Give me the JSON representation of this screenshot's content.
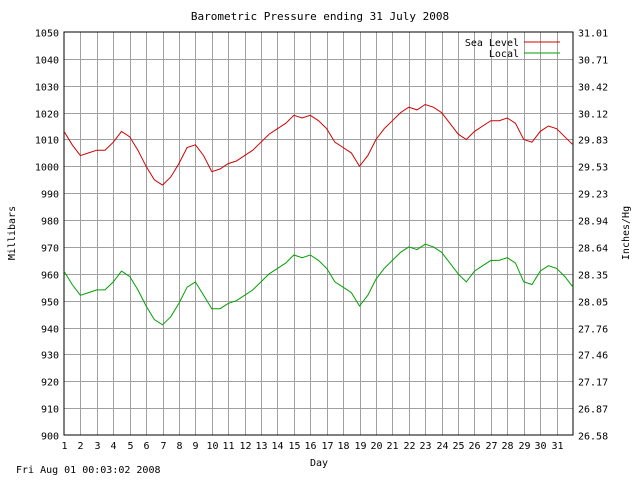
{
  "timestamp": "Fri Aug 01 00:03:02 2008",
  "chart_data": {
    "type": "line",
    "title": "Barometric Pressure ending 31 July 2008",
    "xlabel": "Day",
    "ylabel": "Millibars",
    "y2label": "Inches/Hg",
    "x_ticks": [
      "1",
      "2",
      "3",
      "4",
      "5",
      "6",
      "7",
      "8",
      "9",
      "10",
      "11",
      "12",
      "13",
      "14",
      "15",
      "16",
      "17",
      "18",
      "19",
      "20",
      "21",
      "22",
      "23",
      "24",
      "25",
      "26",
      "27",
      "28",
      "29",
      "30",
      "31"
    ],
    "xlim": [
      1,
      32
    ],
    "ylim": [
      900,
      1050
    ],
    "y_ticks": [
      "900",
      "910",
      "920",
      "930",
      "940",
      "950",
      "960",
      "970",
      "980",
      "990",
      "1000",
      "1010",
      "1020",
      "1030",
      "1040",
      "1050"
    ],
    "y2lim": [
      26.58,
      31.01
    ],
    "y2_ticks": [
      "26.58",
      "26.87",
      "27.17",
      "27.46",
      "27.76",
      "28.05",
      "28.35",
      "28.64",
      "28.94",
      "29.23",
      "29.53",
      "29.83",
      "30.12",
      "30.42",
      "30.71",
      "31.01"
    ],
    "grid": true,
    "legend_position": "top-right",
    "series": [
      {
        "name": "Sea Level",
        "color": "#d00000",
        "x": [
          1,
          1.5,
          2,
          2.5,
          3,
          3.5,
          4,
          4.5,
          5,
          5.5,
          6,
          6.5,
          7,
          7.5,
          8,
          8.5,
          9,
          9.5,
          10,
          10.5,
          11,
          11.5,
          12,
          12.5,
          13,
          13.5,
          14,
          14.5,
          15,
          15.5,
          16,
          16.5,
          17,
          17.5,
          18,
          18.5,
          19,
          19.5,
          20,
          20.5,
          21,
          21.5,
          22,
          22.5,
          23,
          23.5,
          24,
          24.5,
          25,
          25.5,
          26,
          26.5,
          27,
          27.5,
          28,
          28.5,
          29,
          29.5,
          30,
          30.5,
          31,
          31.5,
          32
        ],
        "values": [
          1013,
          1008,
          1004,
          1005,
          1006,
          1006,
          1009,
          1013,
          1011,
          1006,
          1000,
          995,
          993,
          996,
          1001,
          1007,
          1008,
          1004,
          998,
          999,
          1001,
          1002,
          1004,
          1006,
          1009,
          1012,
          1014,
          1016,
          1019,
          1018,
          1019,
          1017,
          1014,
          1009,
          1007,
          1005,
          1000,
          1004,
          1010,
          1014,
          1017,
          1020,
          1022,
          1021,
          1023,
          1022,
          1020,
          1016,
          1012,
          1010,
          1013,
          1015,
          1017,
          1017,
          1018,
          1016,
          1010,
          1009,
          1013,
          1015,
          1014,
          1011,
          1008
        ]
      },
      {
        "name": "Local",
        "color": "#00a000",
        "x": [
          1,
          1.5,
          2,
          2.5,
          3,
          3.5,
          4,
          4.5,
          5,
          5.5,
          6,
          6.5,
          7,
          7.5,
          8,
          8.5,
          9,
          9.5,
          10,
          10.5,
          11,
          11.5,
          12,
          12.5,
          13,
          13.5,
          14,
          14.5,
          15,
          15.5,
          16,
          16.5,
          17,
          17.5,
          18,
          18.5,
          19,
          19.5,
          20,
          20.5,
          21,
          21.5,
          22,
          22.5,
          23,
          23.5,
          24,
          24.5,
          25,
          25.5,
          26,
          26.5,
          27,
          27.5,
          28,
          28.5,
          29,
          29.5,
          30,
          30.5,
          31,
          31.5,
          32
        ],
        "values": [
          961,
          956,
          952,
          953,
          954,
          954,
          957,
          961,
          959,
          954,
          948,
          943,
          941,
          944,
          949,
          955,
          957,
          952,
          947,
          947,
          949,
          950,
          952,
          954,
          957,
          960,
          962,
          964,
          967,
          966,
          967,
          965,
          962,
          957,
          955,
          953,
          948,
          952,
          958,
          962,
          965,
          968,
          970,
          969,
          971,
          970,
          968,
          964,
          960,
          957,
          961,
          963,
          965,
          965,
          966,
          964,
          957,
          956,
          961,
          963,
          962,
          959,
          955
        ]
      }
    ]
  }
}
